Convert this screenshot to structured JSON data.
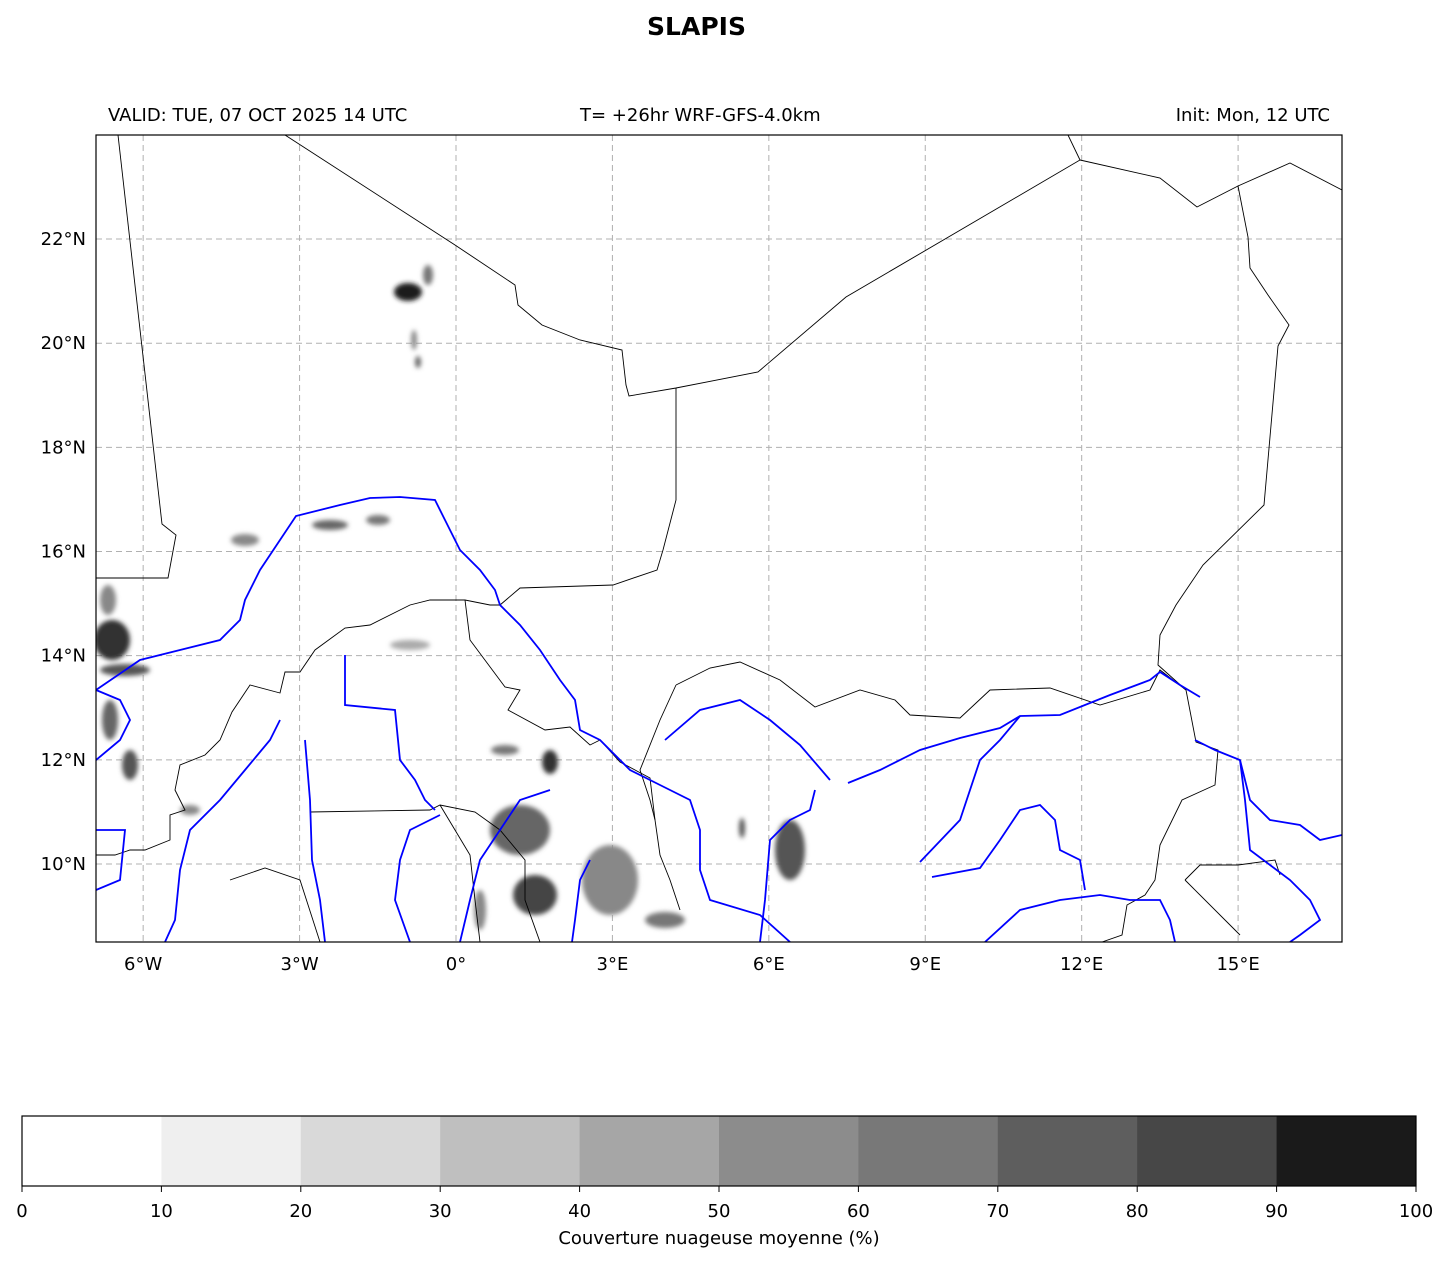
{
  "title": "SLAPIS",
  "header": {
    "valid": "VALID: TUE, 07 OCT 2025 14 UTC",
    "run": "T= +26hr WRF-GFS-4.0km",
    "init": "Init: Mon, 12 UTC"
  },
  "map": {
    "lon_range": [
      -6.9,
      17
    ],
    "lat_range": [
      8.5,
      24
    ],
    "lon_ticks": [
      {
        "v": -6,
        "label": "6°W"
      },
      {
        "v": -3,
        "label": "3°W"
      },
      {
        "v": 0,
        "label": "0°"
      },
      {
        "v": 3,
        "label": "3°E"
      },
      {
        "v": 6,
        "label": "6°E"
      },
      {
        "v": 9,
        "label": "9°E"
      },
      {
        "v": 12,
        "label": "12°E"
      },
      {
        "v": 15,
        "label": "15°E"
      }
    ],
    "lat_ticks": [
      {
        "v": 22,
        "label": "22°N"
      },
      {
        "v": 20,
        "label": "20°N"
      },
      {
        "v": 18,
        "label": "18°N"
      },
      {
        "v": 16,
        "label": "16°N"
      },
      {
        "v": 14,
        "label": "14°N"
      },
      {
        "v": 12,
        "label": "12°N"
      },
      {
        "v": 10,
        "label": "10°N"
      }
    ],
    "border_color": "#000000",
    "river_color": "#0000ff",
    "grid_color": "#b0b0b0"
  },
  "colorbar": {
    "label": "Couverture nuageuse moyenne (%)",
    "ticks": [
      "0",
      "10",
      "20",
      "30",
      "40",
      "50",
      "60",
      "70",
      "80",
      "90",
      "100"
    ],
    "colors": [
      "#ffffff",
      "#efefef",
      "#d9d9d9",
      "#bfbfbf",
      "#a6a6a6",
      "#8c8c8c",
      "#787878",
      "#5e5e5e",
      "#474747",
      "#1a1a1a"
    ]
  }
}
